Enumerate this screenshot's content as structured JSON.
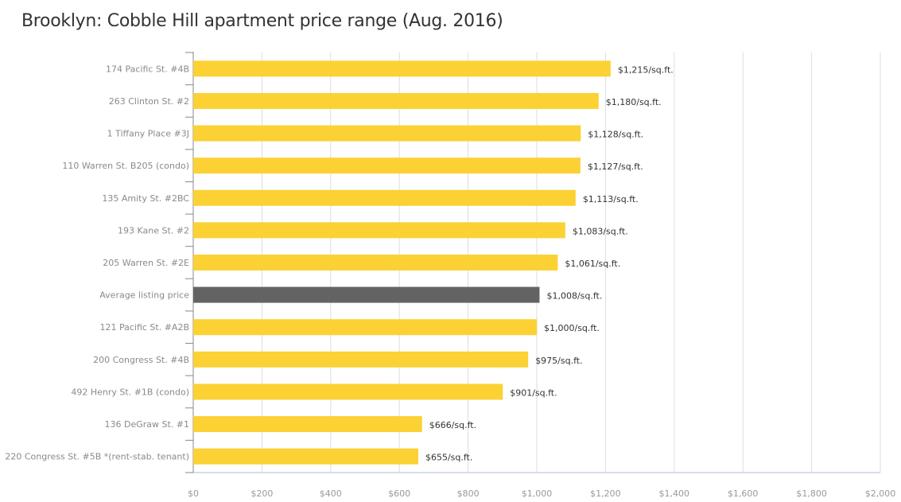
{
  "chart_data": {
    "type": "bar",
    "orientation": "horizontal",
    "title": "Brooklyn: Cobble Hill apartment price range (Aug. 2016)",
    "categories": [
      "174 Pacific St. #4B",
      "263 Clinton St. #2",
      "1 Tiffany Place #3J",
      "110 Warren St. B205 (condo)",
      "135 Amity St. #2BC",
      "193 Kane St. #2",
      "205 Warren St. #2E",
      "Average listing price",
      "121 Pacific St. #A2B",
      "200 Congress St. #4B",
      "492 Henry St. #1B (condo)",
      "136 DeGraw St. #1",
      "220 Congress St. #5B *(rent-stab. tenant)"
    ],
    "values": [
      1215,
      1180,
      1128,
      1127,
      1113,
      1083,
      1061,
      1008,
      1000,
      975,
      901,
      666,
      655
    ],
    "data_labels": [
      "$1,215/sq.ft.",
      "$1,180/sq.ft.",
      "$1,128/sq.ft.",
      "$1,127/sq.ft.",
      "$1,113/sq.ft.",
      "$1,083/sq.ft.",
      "$1,061/sq.ft.",
      "$1,008/sq.ft.",
      "$1,000/sq.ft.",
      "$975/sq.ft.",
      "$901/sq.ft.",
      "$666/sq.ft.",
      "$655/sq.ft."
    ],
    "highlight_index": 7,
    "xlim": [
      0,
      2000
    ],
    "xticks": [
      0,
      200,
      400,
      600,
      800,
      1000,
      1200,
      1400,
      1600,
      1800,
      2000
    ],
    "xtick_labels": [
      "$0",
      "$200",
      "$400",
      "$600",
      "$800",
      "$1,000",
      "$1,200",
      "$1,400",
      "$1,600",
      "$1,800",
      "$2,000"
    ],
    "grid": "vertical",
    "colors": {
      "bar": "#fbd134",
      "highlight": "#636363",
      "grid": "#dddddd",
      "axis": "#c8d3df"
    }
  }
}
